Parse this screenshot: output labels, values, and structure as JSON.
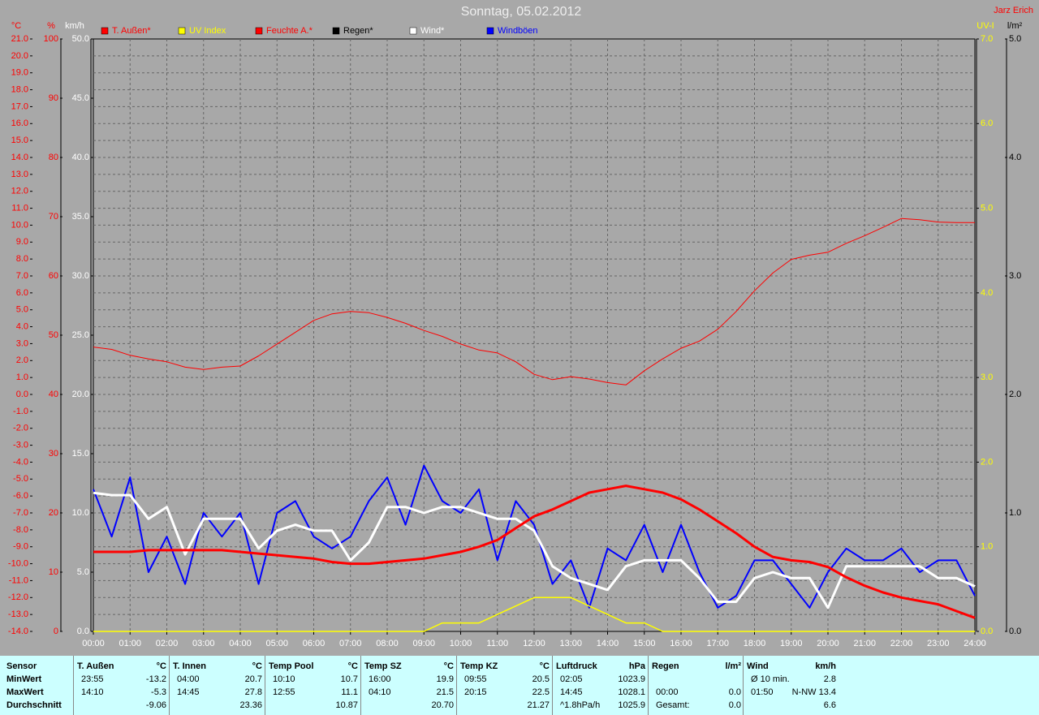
{
  "chart_data": {
    "type": "line",
    "title": "Sonntag, 05.02.2012",
    "author": "Jarz Erich",
    "xlim": [
      0,
      24
    ],
    "xticks": [
      {
        "value": 0,
        "label": "00:00"
      },
      {
        "value": 1,
        "label": "01:00"
      },
      {
        "value": 2,
        "label": "02:00"
      },
      {
        "value": 3,
        "label": "03:00"
      },
      {
        "value": 4,
        "label": "04:00"
      },
      {
        "value": 5,
        "label": "05:00"
      },
      {
        "value": 6,
        "label": "06:00"
      },
      {
        "value": 7,
        "label": "07:00"
      },
      {
        "value": 8,
        "label": "08:00"
      },
      {
        "value": 9,
        "label": "09:00"
      },
      {
        "value": 10,
        "label": "10:00"
      },
      {
        "value": 11,
        "label": "11:00"
      },
      {
        "value": 12,
        "label": "12:00"
      },
      {
        "value": 13,
        "label": "13:00"
      },
      {
        "value": 14,
        "label": "14:00"
      },
      {
        "value": 15,
        "label": "15:00"
      },
      {
        "value": 16,
        "label": "16:00"
      },
      {
        "value": 17,
        "label": "17:00"
      },
      {
        "value": 18,
        "label": "18:00"
      },
      {
        "value": 19,
        "label": "19:00"
      },
      {
        "value": 20,
        "label": "20:00"
      },
      {
        "value": 21,
        "label": "21:00"
      },
      {
        "value": 22,
        "label": "22:00"
      },
      {
        "value": 23,
        "label": "23:00"
      },
      {
        "value": 24,
        "label": "24:00"
      }
    ],
    "grid": true,
    "axes": [
      {
        "label": "°C",
        "color": "#ff0000",
        "lim": [
          -14,
          21
        ],
        "ticks": [
          {
            "value": -14,
            "label": "-14.0"
          },
          {
            "value": -13,
            "label": "-13.0"
          },
          {
            "value": -12,
            "label": "-12.0"
          },
          {
            "value": -11,
            "label": "-11.0"
          },
          {
            "value": -10,
            "label": "-10.0"
          },
          {
            "value": -9,
            "label": "-9.0"
          },
          {
            "value": -8,
            "label": "-8.0"
          },
          {
            "value": -7,
            "label": "-7.0"
          },
          {
            "value": -6,
            "label": "-6.0"
          },
          {
            "value": -5,
            "label": "-5.0"
          },
          {
            "value": -4,
            "label": "-4.0"
          },
          {
            "value": -3,
            "label": "-3.0"
          },
          {
            "value": -2,
            "label": "-2.0"
          },
          {
            "value": -1,
            "label": "-1.0"
          },
          {
            "value": 0,
            "label": "0.0"
          },
          {
            "value": 1,
            "label": "1.0"
          },
          {
            "value": 2,
            "label": "2.0"
          },
          {
            "value": 3,
            "label": "3.0"
          },
          {
            "value": 4,
            "label": "4.0"
          },
          {
            "value": 5,
            "label": "5.0"
          },
          {
            "value": 6,
            "label": "6.0"
          },
          {
            "value": 7,
            "label": "7.0"
          },
          {
            "value": 8,
            "label": "8.0"
          },
          {
            "value": 9,
            "label": "9.0"
          },
          {
            "value": 10,
            "label": "10.0"
          },
          {
            "value": 11,
            "label": "11.0"
          },
          {
            "value": 12,
            "label": "12.0"
          },
          {
            "value": 13,
            "label": "13.0"
          },
          {
            "value": 14,
            "label": "14.0"
          },
          {
            "value": 15,
            "label": "15.0"
          },
          {
            "value": 16,
            "label": "16.0"
          },
          {
            "value": 17,
            "label": "17.0"
          },
          {
            "value": 18,
            "label": "18.0"
          },
          {
            "value": 19,
            "label": "19.0"
          },
          {
            "value": 20,
            "label": "20.0"
          },
          {
            "value": 21,
            "label": "21.0"
          }
        ]
      },
      {
        "label": "%",
        "color": "#ff0000",
        "lim": [
          0,
          100
        ],
        "ticks": [
          0,
          10,
          20,
          30,
          40,
          50,
          60,
          70,
          80,
          90,
          100
        ]
      },
      {
        "label": "km/h",
        "color": "#ffffff",
        "lim": [
          0,
          50
        ],
        "ticks": [
          {
            "value": 0,
            "label": "0.0"
          },
          {
            "value": 5,
            "label": "5.0"
          },
          {
            "value": 10,
            "label": "10.0"
          },
          {
            "value": 15,
            "label": "15.0"
          },
          {
            "value": 20,
            "label": "20.0"
          },
          {
            "value": 25,
            "label": "25.0"
          },
          {
            "value": 30,
            "label": "30.0"
          },
          {
            "value": 35,
            "label": "35.0"
          },
          {
            "value": 40,
            "label": "40.0"
          },
          {
            "value": 45,
            "label": "45.0"
          },
          {
            "value": 50,
            "label": "50.0"
          }
        ]
      },
      {
        "label": "UV-I",
        "color": "#ffff00",
        "lim": [
          0,
          7
        ],
        "ticks": [
          {
            "value": 0,
            "label": "0.0"
          },
          {
            "value": 1,
            "label": "1.0"
          },
          {
            "value": 2,
            "label": "2.0"
          },
          {
            "value": 3,
            "label": "3.0"
          },
          {
            "value": 4,
            "label": "4.0"
          },
          {
            "value": 5,
            "label": "5.0"
          },
          {
            "value": 6,
            "label": "6.0"
          },
          {
            "value": 7,
            "label": "7.0"
          }
        ]
      },
      {
        "label": "l/m²",
        "color": "#000000",
        "lim": [
          0,
          5
        ],
        "ticks": [
          {
            "value": 0,
            "label": "0.0"
          },
          {
            "value": 1,
            "label": "1.0"
          },
          {
            "value": 2,
            "label": "2.0"
          },
          {
            "value": 3,
            "label": "3.0"
          },
          {
            "value": 4,
            "label": "4.0"
          },
          {
            "value": 5,
            "label": "5.0"
          }
        ]
      }
    ],
    "x": [
      0,
      0.5,
      1,
      1.5,
      2,
      2.5,
      3,
      3.5,
      4,
      4.5,
      5,
      5.5,
      6,
      6.5,
      7,
      7.5,
      8,
      8.5,
      9,
      9.5,
      10,
      10.5,
      11,
      11.5,
      12,
      12.5,
      13,
      13.5,
      14,
      14.5,
      15,
      15.5,
      16,
      16.5,
      17,
      17.5,
      18,
      18.5,
      19,
      19.5,
      20,
      20.5,
      21,
      21.5,
      22,
      22.5,
      23,
      23.5,
      24
    ],
    "series": [
      {
        "name": "T. Außen*",
        "color": "#ff0000",
        "axis": 0,
        "values": [
          -9.3,
          -9.3,
          -9.3,
          -9.2,
          -9.2,
          -9.2,
          -9.2,
          -9.2,
          -9.3,
          -9.4,
          -9.5,
          -9.6,
          -9.7,
          -9.9,
          -10.0,
          -10.0,
          -9.9,
          -9.8,
          -9.7,
          -9.5,
          -9.3,
          -9.0,
          -8.6,
          -7.9,
          -7.2,
          -6.8,
          -6.3,
          -5.8,
          -5.6,
          -5.4,
          -5.6,
          -5.8,
          -6.2,
          -6.8,
          -7.5,
          -8.2,
          -9.0,
          -9.6,
          -9.8,
          -9.9,
          -10.2,
          -10.8,
          -11.3,
          -11.7,
          -12.0,
          -12.2,
          -12.4,
          -12.8,
          -13.2
        ]
      },
      {
        "name": "UV Index",
        "color": "#ffff00",
        "axis": 3,
        "values": [
          0,
          0,
          0,
          0,
          0,
          0,
          0,
          0,
          0,
          0,
          0,
          0,
          0,
          0,
          0,
          0,
          0,
          0,
          0,
          0.1,
          0.1,
          0.1,
          0.2,
          0.3,
          0.4,
          0.4,
          0.4,
          0.3,
          0.2,
          0.1,
          0.1,
          0,
          0,
          0,
          0,
          0,
          0,
          0,
          0,
          0,
          0,
          0,
          0,
          0,
          0,
          0,
          0,
          0,
          0
        ]
      },
      {
        "name": "Feuchte A.*",
        "color": "#ff0000",
        "axis": 1,
        "values": [
          48,
          47.6,
          46.6,
          46,
          45.5,
          44.6,
          44.2,
          44.6,
          44.8,
          46.5,
          48.5,
          50.5,
          52.5,
          53.6,
          54,
          53.8,
          53,
          52,
          50.8,
          49.8,
          48.5,
          47.5,
          47,
          45.5,
          43.4,
          42.5,
          43,
          42.6,
          42,
          41.6,
          44,
          46,
          47.8,
          49,
          51,
          54,
          57.5,
          60.5,
          62.8,
          63.5,
          64,
          65.5,
          66.8,
          68.2,
          69.7,
          69.5,
          69.1,
          69,
          69
        ]
      },
      {
        "name": "Regen*",
        "color": "#000000",
        "axis": 4,
        "values": [
          0,
          0,
          0,
          0,
          0,
          0,
          0,
          0,
          0,
          0,
          0,
          0,
          0,
          0,
          0,
          0,
          0,
          0,
          0,
          0,
          0,
          0,
          0,
          0,
          0,
          0,
          0,
          0,
          0,
          0,
          0,
          0,
          0,
          0,
          0,
          0,
          0,
          0,
          0,
          0,
          0,
          0,
          0,
          0,
          0,
          0,
          0,
          0,
          0
        ]
      },
      {
        "name": "Wind*",
        "color": "#ffffff",
        "axis": 2,
        "values": [
          11.7,
          11.5,
          11.5,
          9.5,
          10.5,
          6.5,
          9.5,
          9.5,
          9.5,
          7,
          8.5,
          9,
          8.5,
          8.5,
          6,
          7.5,
          10.5,
          10.5,
          10,
          10.5,
          10.5,
          10,
          9.5,
          9.5,
          8.5,
          5.5,
          4.5,
          4,
          3.5,
          5.5,
          6,
          6,
          6,
          4.5,
          2.5,
          2.5,
          4.5,
          5,
          4.5,
          4.5,
          2,
          5.5,
          5.5,
          5.5,
          5.5,
          5.5,
          4.5,
          4.5,
          3.8
        ]
      },
      {
        "name": "Windböen",
        "color": "#0000ff",
        "axis": 2,
        "values": [
          12,
          8,
          13,
          5,
          8,
          4,
          10,
          8,
          10,
          4,
          10,
          11,
          8,
          7,
          8,
          11,
          13,
          9,
          14,
          11,
          10,
          12,
          6,
          11,
          9,
          4,
          6,
          2,
          7,
          6,
          9,
          5,
          9,
          5,
          2,
          3,
          6,
          6,
          4,
          2,
          5,
          7,
          6,
          6,
          7,
          5,
          6,
          6,
          3
        ]
      }
    ]
  },
  "table": {
    "row_labels": [
      "Sensor",
      "MinWert",
      "MaxWert",
      "Durchschnitt"
    ],
    "groups": [
      {
        "name": "T. Außen",
        "unit": "°C",
        "rows": [
          [
            "23:55",
            "-13.2"
          ],
          [
            "14:10",
            "-5.3"
          ],
          [
            null,
            "-9.06"
          ]
        ]
      },
      {
        "name": "T. Innen",
        "unit": "°C",
        "rows": [
          [
            "04:00",
            "20.7"
          ],
          [
            "14:45",
            "27.8"
          ],
          [
            null,
            "23.36"
          ]
        ]
      },
      {
        "name": "Temp Pool",
        "unit": "°C",
        "rows": [
          [
            "10:10",
            "10.7"
          ],
          [
            "12:55",
            "11.1"
          ],
          [
            null,
            "10.87"
          ]
        ]
      },
      {
        "name": "Temp SZ",
        "unit": "°C",
        "rows": [
          [
            "16:00",
            "19.9"
          ],
          [
            "04:10",
            "21.5"
          ],
          [
            null,
            "20.70"
          ]
        ]
      },
      {
        "name": "Temp KZ",
        "unit": "°C",
        "rows": [
          [
            "09:55",
            "20.5"
          ],
          [
            "20:15",
            "22.5"
          ],
          [
            null,
            "21.27"
          ]
        ]
      },
      {
        "name": "Luftdruck",
        "unit": "hPa",
        "rows": [
          [
            "02:05",
            "1023.9"
          ],
          [
            "14:45",
            "1028.1"
          ],
          [
            "^1.8hPa/h",
            "1025.9"
          ]
        ]
      },
      {
        "name": "Regen",
        "unit": "l/m²",
        "rows": [
          [
            null,
            null
          ],
          [
            "00:00",
            "0.0"
          ],
          [
            "Gesamt:",
            "0.0"
          ]
        ]
      },
      {
        "name": "Wind",
        "unit": "km/h",
        "rows": [
          [
            "Ø 10 min.",
            "2.8"
          ],
          [
            "01:50",
            "N-NW 13.4"
          ],
          [
            null,
            "6.6"
          ]
        ]
      }
    ]
  }
}
